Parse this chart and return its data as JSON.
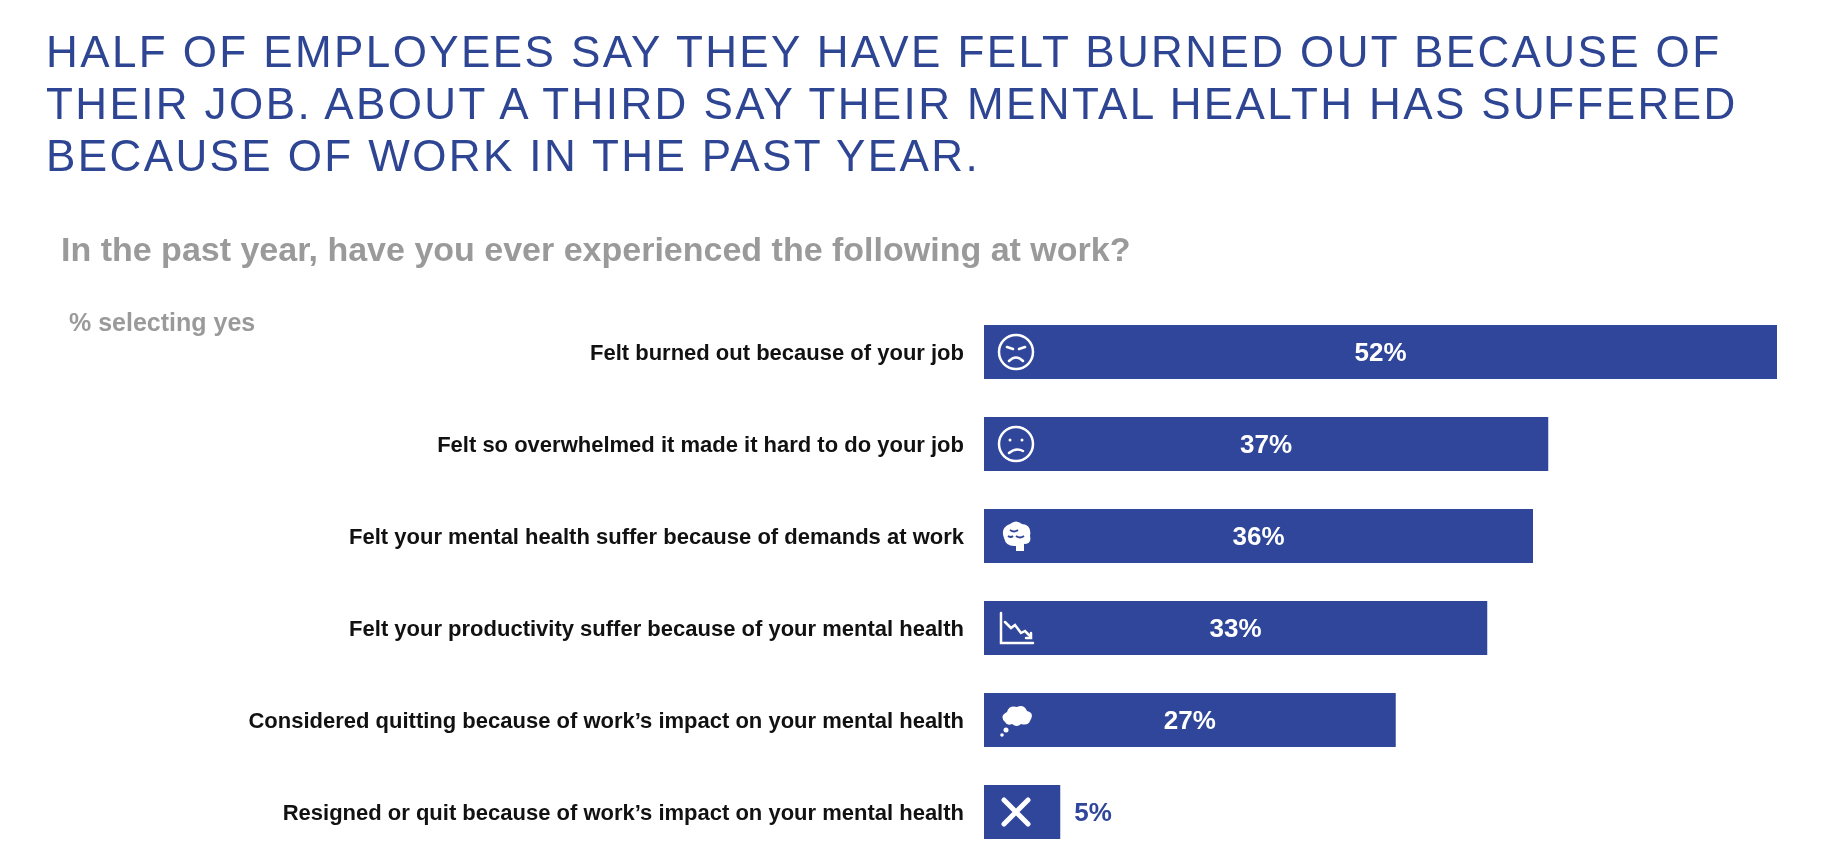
{
  "chart_data": {
    "type": "bar",
    "orientation": "horizontal",
    "title": "HALF OF EMPLOYEES SAY THEY HAVE FELT BURNED OUT BECAUSE OF THEIR JOB. ABOUT A THIRD SAY THEIR MENTAL HEALTH HAS SUFFERED BECAUSE OF WORK IN THE PAST YEAR.",
    "subtitle": "In the past year, have you ever experienced the following at work?",
    "annotations": [
      "% selecting yes"
    ],
    "categories": [
      "Felt burned out because of your job",
      "Felt so overwhelmed it made it hard to do your job",
      "Felt your mental health suffer because of demands at work",
      "Felt your productivity suffer because of your mental health",
      "Considered quitting because of work’s impact on your mental health",
      "Resigned or quit because of work’s impact on your mental health"
    ],
    "values": [
      52,
      37,
      36,
      33,
      27,
      5
    ],
    "value_labels": [
      "52%",
      "37%",
      "36%",
      "33%",
      "27%",
      "5%"
    ],
    "color": "#30469a"
  }
}
